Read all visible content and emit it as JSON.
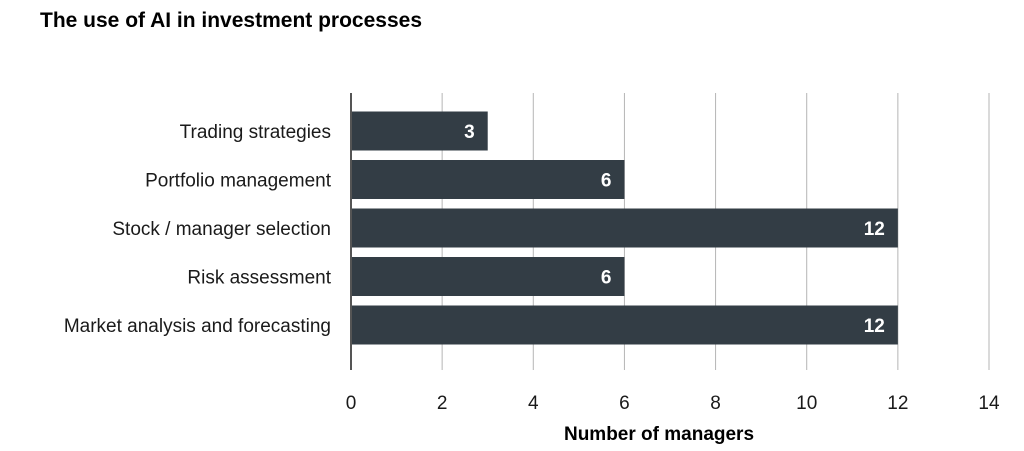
{
  "chart_data": {
    "type": "bar",
    "orientation": "horizontal",
    "title": "The use of AI in investment processes",
    "xlabel": "Number of managers",
    "ylabel": "",
    "categories": [
      "Trading strategies",
      "Portfolio management",
      "Stock / manager selection",
      "Risk assessment",
      "Market analysis and forecasting"
    ],
    "values": [
      3,
      6,
      12,
      6,
      12
    ],
    "xlim": [
      0,
      14
    ],
    "xticks": [
      0,
      2,
      4,
      6,
      8,
      10,
      12,
      14
    ],
    "grid": true,
    "bar_color": "#333d45",
    "label_color": "#ffffff"
  }
}
